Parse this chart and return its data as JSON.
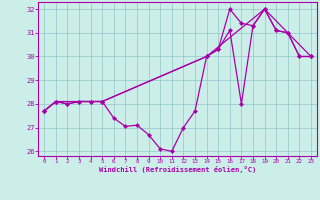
{
  "xlabel": "Windchill (Refroidissement éolien,°C)",
  "xlim": [
    -0.5,
    23.5
  ],
  "ylim": [
    25.8,
    32.3
  ],
  "yticks": [
    26,
    27,
    28,
    29,
    30,
    31,
    32
  ],
  "xticks": [
    0,
    1,
    2,
    3,
    4,
    5,
    6,
    7,
    8,
    9,
    10,
    11,
    12,
    13,
    14,
    15,
    16,
    17,
    18,
    19,
    20,
    21,
    22,
    23
  ],
  "bg_color": "#cceee8",
  "line_color": "#aa00aa",
  "grid_color": "#99cccc",
  "line1_x": [
    0,
    1,
    2,
    3,
    4,
    5,
    6,
    7,
    8,
    9,
    10,
    11,
    12,
    13,
    14,
    15,
    16,
    17,
    18,
    19,
    20,
    21,
    22,
    23
  ],
  "line1_y": [
    27.7,
    28.1,
    28.0,
    28.1,
    28.1,
    28.1,
    27.4,
    27.05,
    27.1,
    26.7,
    26.1,
    26.0,
    27.0,
    27.7,
    30.0,
    30.3,
    31.1,
    28.0,
    31.3,
    32.0,
    31.1,
    31.0,
    30.0,
    30.0
  ],
  "line2_x": [
    0,
    1,
    2,
    3,
    4,
    5,
    14,
    15,
    16,
    17,
    18,
    19,
    20,
    21,
    22,
    23
  ],
  "line2_y": [
    27.7,
    28.1,
    28.0,
    28.1,
    28.1,
    28.1,
    30.0,
    30.3,
    32.0,
    31.4,
    31.3,
    32.0,
    31.1,
    31.0,
    30.0,
    30.0
  ],
  "line3_x": [
    0,
    1,
    5,
    14,
    19,
    23
  ],
  "line3_y": [
    27.7,
    28.1,
    28.1,
    30.0,
    32.0,
    30.0
  ]
}
